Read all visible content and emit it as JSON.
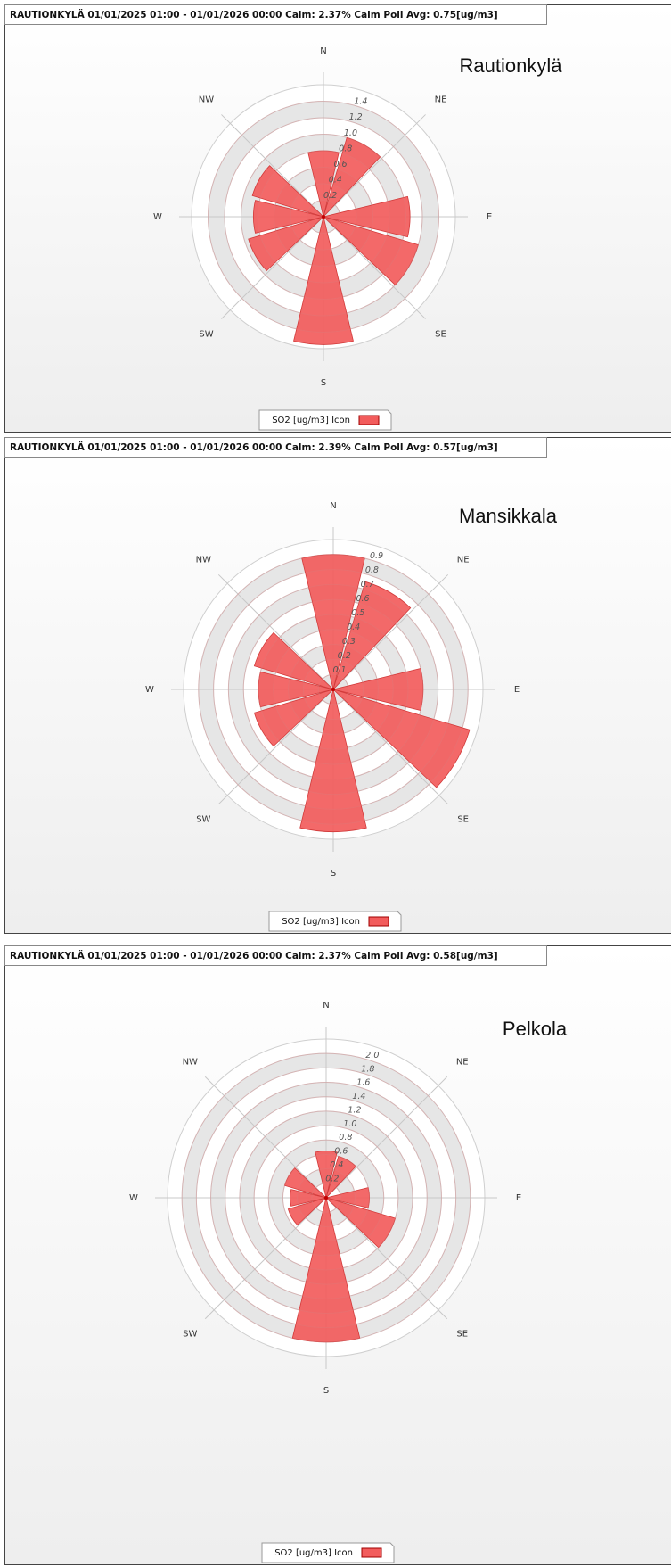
{
  "chart_data": [
    {
      "type": "polar",
      "title": "RAUTIONKYLÄ 01/01/2025 01:00 - 01/01/2026 00:00 Calm: 2.37%  Calm Poll Avg: 0.75[ug/m3]",
      "annotation": "Rautionkylä",
      "directions": [
        "N",
        "NE",
        "E",
        "SE",
        "S",
        "SW",
        "W",
        "NW"
      ],
      "x": [
        0,
        30,
        60,
        90,
        120,
        150,
        180,
        210,
        240,
        270,
        300,
        330
      ],
      "series": [
        {
          "name": "SO2 [ug/m3] Icon",
          "color": "#f25c5c",
          "values": [
            0.8,
            1.0,
            0,
            1.05,
            1.2,
            0,
            1.55,
            0,
            0.95,
            0.85,
            0.9,
            0
          ]
        }
      ],
      "ylim": [
        0,
        1.6
      ],
      "yticks": [
        0.2,
        0.4,
        0.6,
        0.8,
        {
          "value": 1,
          "label": "1.0"
        },
        1.2,
        1.4
      ],
      "grid": true
    },
    {
      "type": "polar",
      "title": "RAUTIONKYLÄ 01/01/2025 01:00 - 01/01/2026 00:00 Calm: 2.39%  Calm Poll Avg: 0.57[ug/m3]",
      "annotation": "Mansikkala",
      "directions": [
        "N",
        "NE",
        "E",
        "SE",
        "S",
        "SW",
        "W",
        "NW"
      ],
      "x": [
        0,
        30,
        60,
        90,
        120,
        150,
        180,
        210,
        240,
        270,
        300,
        330
      ],
      "series": [
        {
          "name": "SO2 [ug/m3] Icon",
          "color": "#f25c5c",
          "values": [
            0.9,
            0.75,
            0,
            0.6,
            0.95,
            0,
            0.95,
            0,
            0.55,
            0.5,
            0.55,
            0
          ]
        }
      ],
      "ylim": [
        0,
        1.0
      ],
      "yticks": [
        0.1,
        0.2,
        0.3,
        0.4,
        0.5,
        0.6,
        0.7,
        0.8,
        0.9
      ],
      "grid": true
    },
    {
      "type": "polar",
      "title": "RAUTIONKYLÄ 01/01/2025 01:00 - 01/01/2026 00:00 Calm: 2.37%  Calm Poll Avg: 0.58[ug/m3]",
      "annotation": "Pelkola",
      "directions": [
        "N",
        "NE",
        "E",
        "SE",
        "S",
        "SW",
        "W",
        "NW"
      ],
      "x": [
        0,
        30,
        60,
        90,
        120,
        150,
        180,
        210,
        240,
        270,
        300,
        330
      ],
      "series": [
        {
          "name": "SO2 [ug/m3] Icon",
          "color": "#f25c5c",
          "values": [
            0.65,
            0.6,
            0,
            0.6,
            1.0,
            0,
            2.0,
            0,
            0.55,
            0.5,
            0.6,
            0
          ]
        }
      ],
      "ylim": [
        0,
        2.2
      ],
      "yticks": [
        0.2,
        0.4,
        0.6,
        0.8,
        {
          "value": 1,
          "label": "1.0"
        },
        1.2,
        1.4,
        1.6,
        1.8,
        {
          "value": 2,
          "label": "2.0"
        }
      ],
      "grid": true
    }
  ]
}
